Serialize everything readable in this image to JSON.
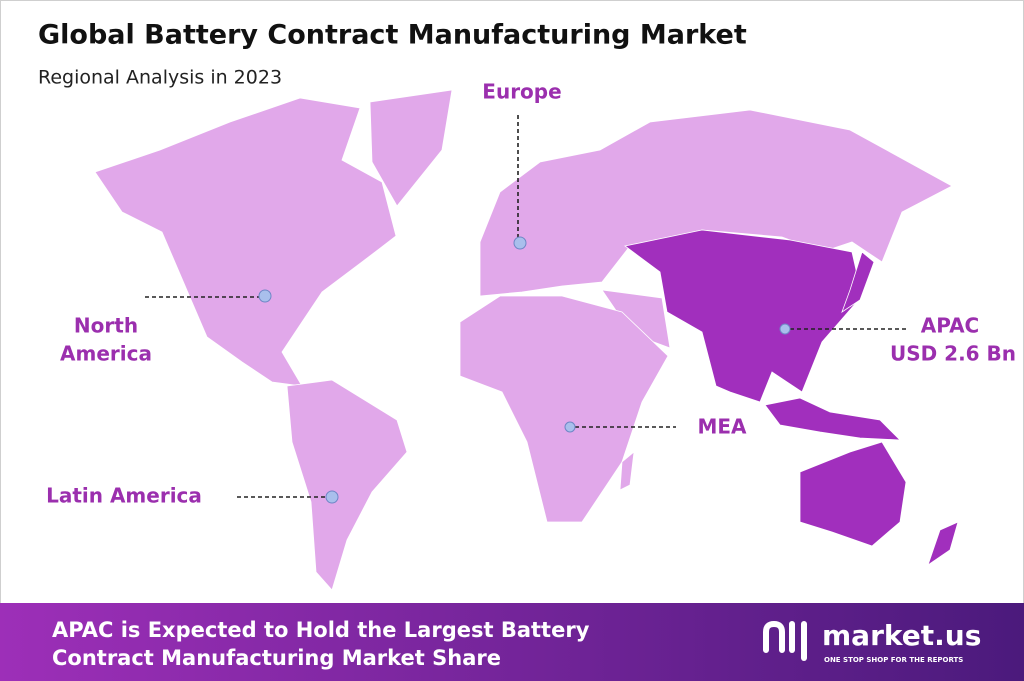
{
  "header": {
    "title": "Global Battery Contract Manufacturing Market",
    "subtitle": "Regional Analysis in 2023"
  },
  "regions": [
    {
      "label": "Europe"
    },
    {
      "label": [
        "North",
        "America"
      ]
    },
    {
      "label": "Latin America"
    },
    {
      "label": "MEA"
    },
    {
      "label": [
        "APAC",
        "USD 2.6 Bn"
      ]
    }
  ],
  "footer": {
    "text": [
      "APAC is Expected to Hold the Largest Battery",
      "Contract Manufacturing Market Share"
    ]
  },
  "brand": {
    "name": "market.us",
    "tagline": "ONE STOP SHOP FOR THE REPORTS"
  }
}
